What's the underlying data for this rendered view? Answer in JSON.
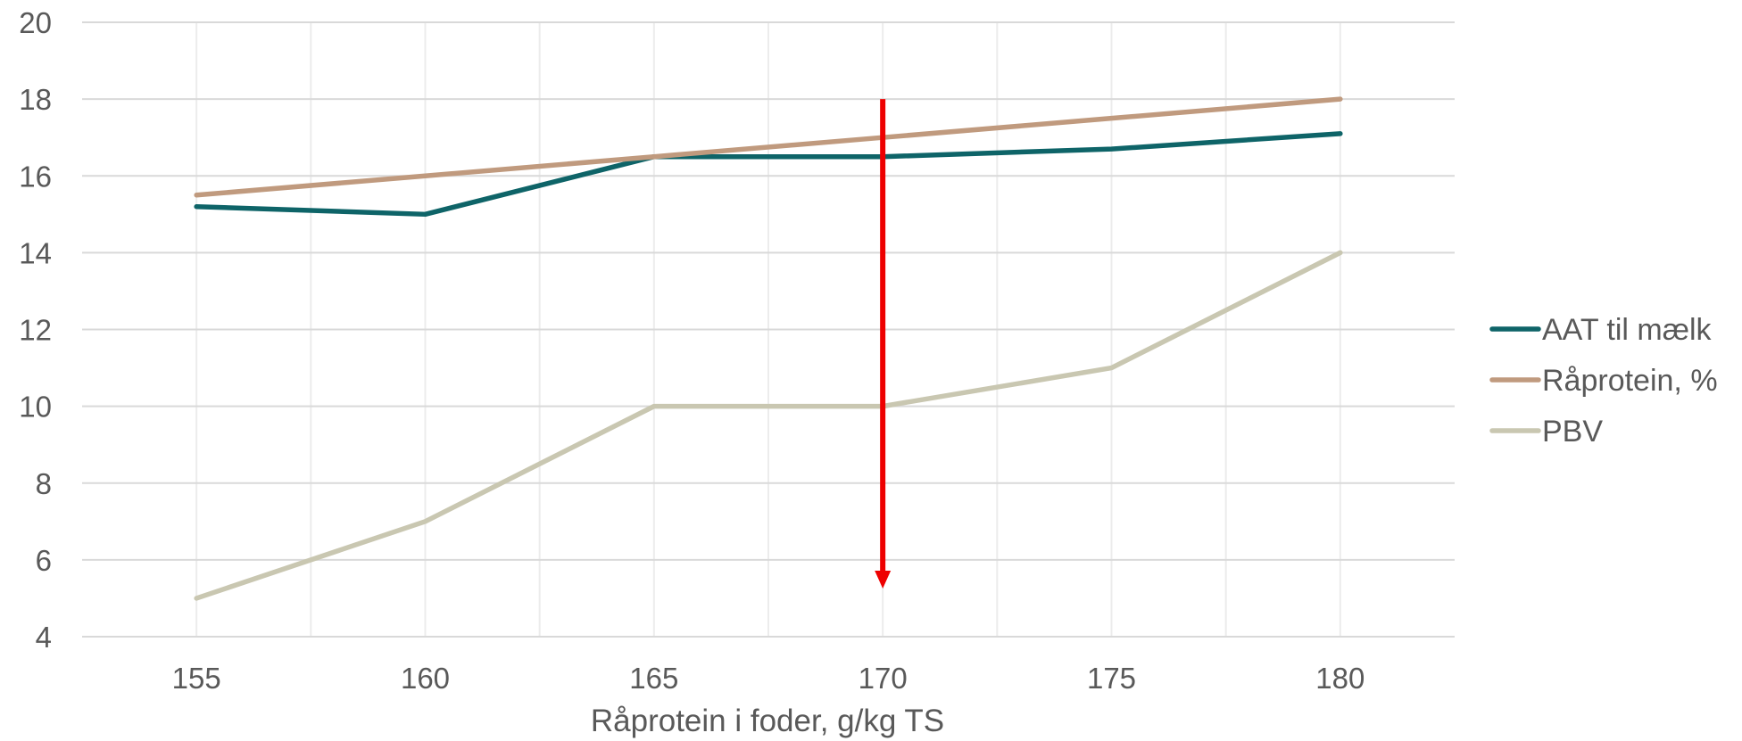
{
  "chart_data": {
    "type": "line",
    "xlabel": "Råprotein i foder, g/kg TS",
    "ylabel": "",
    "x": [
      155,
      160,
      165,
      170,
      175,
      180
    ],
    "x_ticks": [
      "155",
      "160",
      "165",
      "170",
      "175",
      "180"
    ],
    "y_ticks": [
      "4",
      "6",
      "8",
      "10",
      "12",
      "14",
      "16",
      "18",
      "20"
    ],
    "xlim": [
      152.5,
      182.5
    ],
    "ylim": [
      4,
      20
    ],
    "grid": true,
    "legend_position": "right",
    "series": [
      {
        "name": "AAT til mælk",
        "color": "#0e6468",
        "values": [
          15.2,
          15.0,
          16.5,
          16.5,
          16.7,
          17.1
        ]
      },
      {
        "name": "Råprotein, %",
        "color": "#c09a7e",
        "values": [
          15.5,
          16.0,
          16.5,
          17.0,
          17.5,
          18.0
        ]
      },
      {
        "name": "PBV",
        "color": "#c9c7b1",
        "values": [
          5,
          7,
          10,
          10,
          11,
          14
        ]
      }
    ],
    "annotation": {
      "type": "arrow",
      "color": "#ee0000",
      "x": 170,
      "y_start": 18,
      "y_end": 5.3
    }
  }
}
